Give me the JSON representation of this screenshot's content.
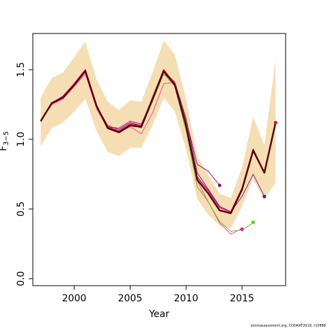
{
  "chart_data": {
    "type": "line",
    "title": "",
    "xlabel": "Year",
    "ylabel": "F",
    "ylabel_sub": "3−5",
    "xlim": [
      1996.3,
      2018.9
    ],
    "ylim": [
      -0.05,
      1.76
    ],
    "x_ticks": [
      2000,
      2005,
      2010,
      2015
    ],
    "y_ticks": [
      0.0,
      0.5,
      1.0,
      1.5
    ],
    "y_tick_labels": [
      "0.0",
      "0.5",
      "1.0",
      "1.5"
    ],
    "grid": false,
    "legend": "none",
    "band": {
      "color": "#f5deb3",
      "x": [
        1997,
        1998,
        1999,
        2000,
        2001,
        2002,
        2003,
        2004,
        2005,
        2006,
        2007,
        2008,
        2009,
        2010,
        2011,
        2012,
        2013,
        2014,
        2015,
        2016,
        2017,
        2018
      ],
      "upper": [
        1.3,
        1.44,
        1.48,
        1.59,
        1.7,
        1.43,
        1.27,
        1.21,
        1.28,
        1.27,
        1.48,
        1.71,
        1.61,
        1.29,
        0.88,
        0.74,
        0.61,
        0.58,
        0.8,
        1.16,
        0.96,
        1.57
      ],
      "lower": [
        0.95,
        1.08,
        1.12,
        1.2,
        1.29,
        1.06,
        0.91,
        0.88,
        0.94,
        0.94,
        1.1,
        1.3,
        1.2,
        0.93,
        0.57,
        0.46,
        0.38,
        0.36,
        0.52,
        0.71,
        0.57,
        0.69
      ]
    },
    "series": [
      {
        "color": "#5a0000",
        "width": 2.5,
        "x": [
          1997,
          1998,
          1999,
          2000,
          2001,
          2002,
          2003,
          2004,
          2005,
          2006,
          2007,
          2008,
          2009,
          2010,
          2011,
          2012,
          2013,
          2014,
          2015,
          2016,
          2017,
          2018
        ],
        "y": [
          1.13,
          1.26,
          1.3,
          1.39,
          1.49,
          1.24,
          1.08,
          1.05,
          1.1,
          1.09,
          1.29,
          1.49,
          1.39,
          1.1,
          0.71,
          0.61,
          0.49,
          0.47,
          0.64,
          0.92,
          0.76,
          1.12
        ]
      },
      {
        "color": "#dd1166",
        "width": 1.5,
        "x": [
          1997,
          1998,
          1999,
          2000,
          2001,
          2002,
          2003,
          2004,
          2005,
          2006,
          2007,
          2008,
          2009,
          2010,
          2011,
          2012,
          2013,
          2014,
          2015,
          2016,
          2017,
          2018
        ],
        "y": [
          1.13,
          1.26,
          1.31,
          1.4,
          1.5,
          1.24,
          1.09,
          1.06,
          1.11,
          1.1,
          1.3,
          1.5,
          1.4,
          1.11,
          0.73,
          0.63,
          0.51,
          0.48,
          0.65,
          0.93,
          0.76,
          1.12
        ]
      },
      {
        "color": "#7b1fa2",
        "width": 1,
        "x": [
          1997,
          1998,
          1999,
          2000,
          2001,
          2002,
          2003,
          2004,
          2005,
          2006,
          2007,
          2008,
          2009,
          2010,
          2011,
          2012,
          2013,
          2014,
          2015,
          2016,
          2017
        ],
        "y": [
          1.13,
          1.25,
          1.3,
          1.39,
          1.49,
          1.23,
          1.09,
          1.08,
          1.13,
          1.11,
          1.29,
          1.47,
          1.41,
          1.15,
          0.76,
          0.64,
          0.52,
          0.48,
          0.59,
          0.75,
          0.59
        ]
      },
      {
        "color": "#8e1a5a",
        "width": 1,
        "x": [
          1997,
          1998,
          1999,
          2000,
          2001,
          2002,
          2003,
          2004,
          2005,
          2006,
          2007,
          2008,
          2009,
          2010,
          2011,
          2012,
          2013
        ],
        "y": [
          1.13,
          1.26,
          1.3,
          1.39,
          1.49,
          1.24,
          1.1,
          1.07,
          1.12,
          1.1,
          1.3,
          1.49,
          1.41,
          1.14,
          0.82,
          0.77,
          0.67
        ]
      },
      {
        "color": "#ff3fa4",
        "width": 1,
        "x": [
          1997,
          1998,
          1999,
          2000,
          2001,
          2002,
          2003,
          2004,
          2005,
          2006,
          2007,
          2008,
          2009,
          2010,
          2011,
          2012,
          2013,
          2014,
          2015
        ],
        "y": [
          1.13,
          1.25,
          1.29,
          1.38,
          1.47,
          1.22,
          1.08,
          1.05,
          1.09,
          1.04,
          1.19,
          1.4,
          1.41,
          1.08,
          0.7,
          0.55,
          0.4,
          0.32,
          0.36
        ]
      },
      {
        "color": "#66bb22",
        "width": 1,
        "x": [
          1997,
          1998,
          1999,
          2000,
          2001,
          2002,
          2003,
          2004,
          2005,
          2006,
          2007,
          2008,
          2009,
          2010,
          2011,
          2012,
          2013,
          2014,
          2015,
          2016
        ],
        "y": [
          1.13,
          1.26,
          1.3,
          1.39,
          1.49,
          1.23,
          1.09,
          1.06,
          1.11,
          1.08,
          1.27,
          1.47,
          1.38,
          1.06,
          0.66,
          0.55,
          0.41,
          0.34,
          0.35,
          0.4
        ]
      }
    ],
    "endpoints": [
      {
        "x": 2018,
        "y": 1.12,
        "color": "#ee1111"
      },
      {
        "x": 2017,
        "y": 0.59,
        "color": "#551a8b"
      },
      {
        "x": 2016,
        "y": 0.405,
        "color": "#66cc00"
      },
      {
        "x": 2015,
        "y": 0.355,
        "color": "#ee11aa"
      },
      {
        "x": 2013,
        "y": 0.67,
        "color": "#8b1a6b"
      }
    ]
  },
  "footer_text": "stockassessment.org, CODKAT2019, r10888"
}
